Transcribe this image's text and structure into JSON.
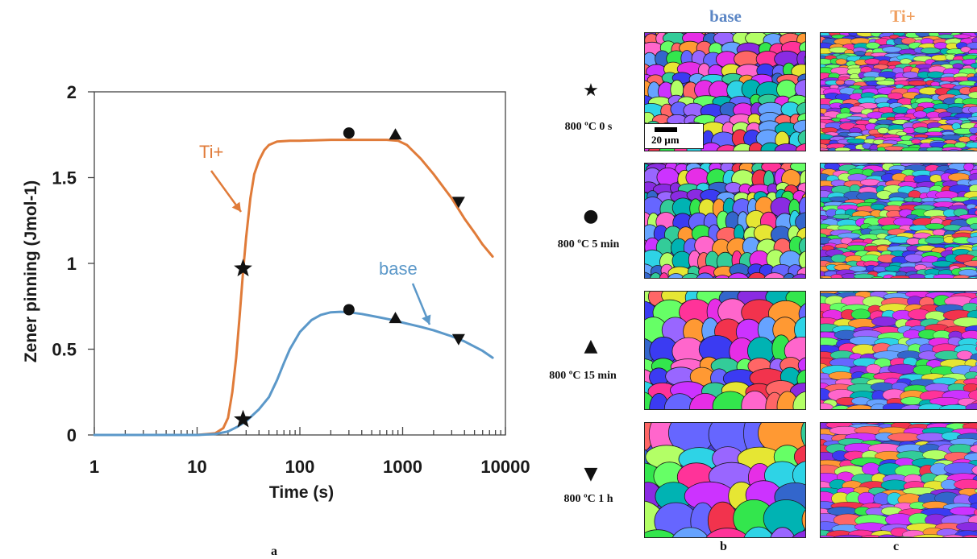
{
  "chart_data": {
    "type": "line",
    "xlabel": "Time (s)",
    "ylabel": "Zener pinning (Jmol-1)",
    "x_scale": "log",
    "xlim": [
      1,
      10000
    ],
    "ylim": [
      0,
      2
    ],
    "x_ticks": [
      "1",
      "10",
      "100",
      "1000",
      "10000"
    ],
    "y_ticks": [
      "0",
      "0.5",
      "1",
      "1.5",
      "2"
    ],
    "grid": false,
    "series": [
      {
        "name": "Ti+",
        "color": "#e07b39",
        "x": [
          1,
          10,
          15,
          18,
          20,
          22,
          24,
          26,
          28,
          30,
          33,
          36,
          40,
          45,
          50,
          60,
          80,
          100,
          200,
          300,
          500,
          700,
          900,
          1100,
          1500,
          2000,
          3000,
          4000,
          5000,
          6000,
          7500
        ],
        "y": [
          0,
          0,
          0.01,
          0.04,
          0.1,
          0.25,
          0.45,
          0.7,
          0.95,
          1.15,
          1.38,
          1.52,
          1.6,
          1.66,
          1.69,
          1.71,
          1.715,
          1.715,
          1.72,
          1.72,
          1.72,
          1.72,
          1.715,
          1.69,
          1.61,
          1.52,
          1.38,
          1.26,
          1.18,
          1.11,
          1.04
        ]
      },
      {
        "name": "base",
        "color": "#5b98c9",
        "x": [
          1,
          10,
          15,
          20,
          25,
          30,
          40,
          50,
          60,
          70,
          80,
          100,
          130,
          160,
          200,
          250,
          300,
          400,
          600,
          800,
          1000,
          1500,
          2000,
          3000,
          4000,
          5000,
          6000,
          7500
        ],
        "y": [
          0,
          0,
          0.005,
          0.02,
          0.05,
          0.08,
          0.15,
          0.22,
          0.32,
          0.42,
          0.5,
          0.6,
          0.67,
          0.7,
          0.715,
          0.718,
          0.715,
          0.705,
          0.685,
          0.67,
          0.655,
          0.63,
          0.61,
          0.575,
          0.545,
          0.515,
          0.49,
          0.45
        ]
      }
    ],
    "markers": [
      {
        "symbol": "star",
        "x": 28,
        "y": 0.97
      },
      {
        "symbol": "circle",
        "x": 300,
        "y": 1.76
      },
      {
        "symbol": "triangle-up",
        "x": 850,
        "y": 1.75
      },
      {
        "symbol": "triangle-down",
        "x": 3500,
        "y": 1.36
      },
      {
        "symbol": "star",
        "x": 28,
        "y": 0.09
      },
      {
        "symbol": "circle",
        "x": 300,
        "y": 0.73
      },
      {
        "symbol": "triangle-up",
        "x": 850,
        "y": 0.68
      },
      {
        "symbol": "triangle-down",
        "x": 3500,
        "y": 0.56
      }
    ]
  },
  "panel_labels": {
    "a": "a",
    "b": "b",
    "c": "c"
  },
  "columns": {
    "base": "base",
    "ti": "Ti+"
  },
  "column_colors": {
    "base": "#5b86c5",
    "ti": "#f0a060"
  },
  "rows": [
    {
      "marker": "★",
      "label": "800 ºC 0 s"
    },
    {
      "marker": "●",
      "label": "800 ºC 5 min"
    },
    {
      "marker": "▲",
      "label": "800 ºC 15 min"
    },
    {
      "marker": "▼",
      "label": "800 ºC 1 h"
    }
  ],
  "scale_bar": "20 µm"
}
